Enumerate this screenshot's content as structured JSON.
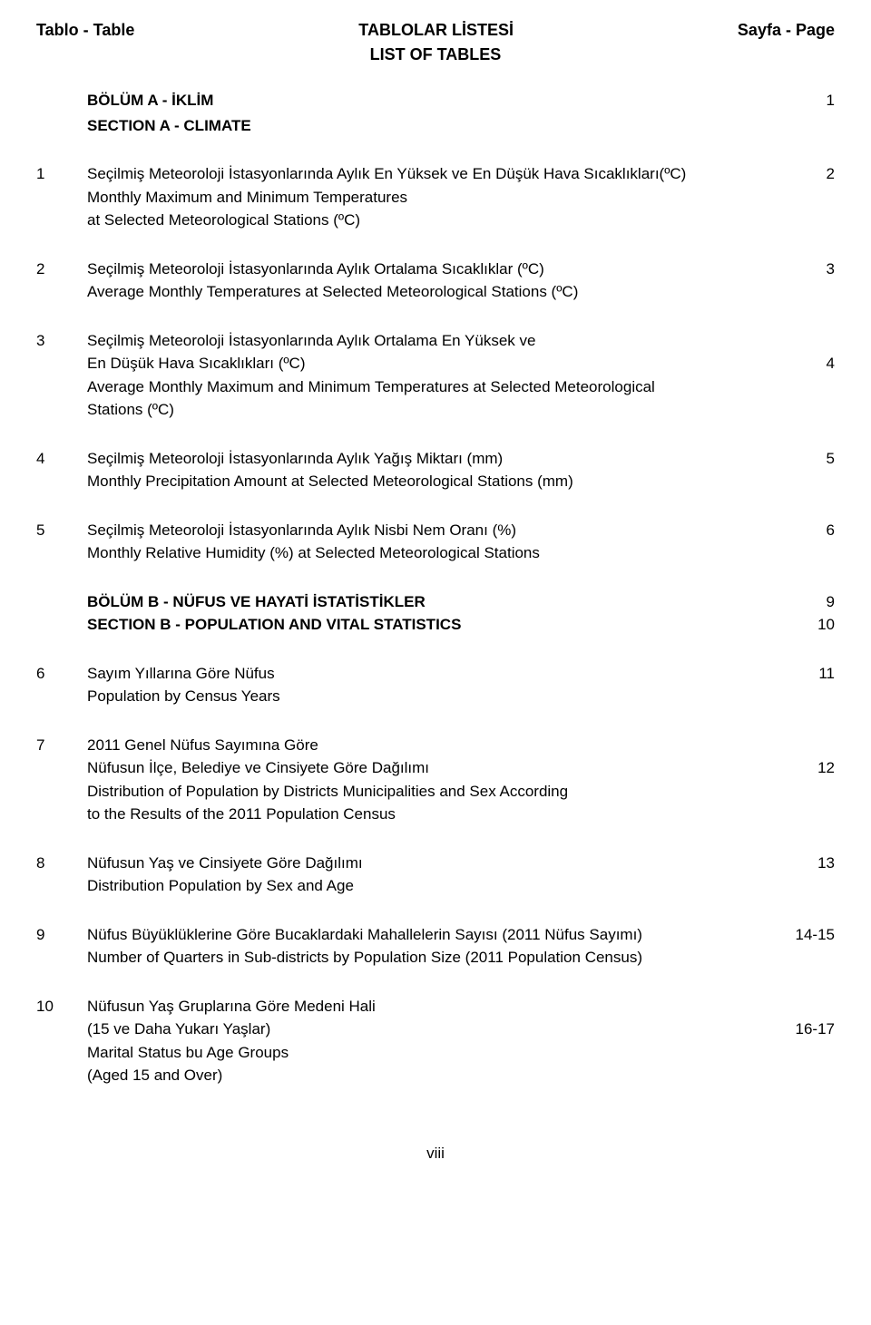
{
  "header": {
    "left": "Tablo - Table",
    "center1": "TABLOLAR LİSTESİ",
    "center2": "LIST OF TABLES",
    "right": "Sayfa - Page"
  },
  "sectionA": {
    "title_tr": "BÖLÜM  A  -  İKLİM",
    "title_en": "SECTION A - CLIMATE",
    "page": "1"
  },
  "entries": [
    {
      "idx": "1",
      "lines": [
        {
          "text": "Seçilmiş Meteoroloji İstasyonlarında Aylık En Yüksek ve En Düşük Hava Sıcaklıkları(ºC)",
          "num": "2"
        },
        {
          "text": "Monthly Maximum and Minimum  Temperatures",
          "num": ""
        },
        {
          "text": "at Selected Meteorological Stations (ºC)",
          "num": ""
        }
      ]
    },
    {
      "idx": "2",
      "lines": [
        {
          "text": "Seçilmiş Meteoroloji İstasyonlarında Aylık Ortalama Sıcaklıklar (ºC)",
          "num": "3"
        },
        {
          "text": "Average Monthly Temperatures at Selected Meteorological Stations (ºC)",
          "num": ""
        }
      ]
    },
    {
      "idx": "3",
      "lines": [
        {
          "text": "Seçilmiş Meteoroloji İstasyonlarında Aylık Ortalama En Yüksek ve",
          "num": ""
        },
        {
          "text": "En Düşük Hava Sıcaklıkları (ºC)",
          "num": "4"
        },
        {
          "text": "Average Monthly Maximum and Minimum Temperatures at Selected Meteorological",
          "num": ""
        },
        {
          "text": "Stations (ºC)",
          "num": ""
        }
      ]
    },
    {
      "idx": "4",
      "lines": [
        {
          "text": "Seçilmiş Meteoroloji İstasyonlarında Aylık Yağış Miktarı (mm)",
          "num": "5"
        },
        {
          "text": "Monthly Precipitation Amount at Selected Meteorological Stations (mm)",
          "num": ""
        }
      ]
    },
    {
      "idx": "5",
      "lines": [
        {
          "text": "Seçilmiş Meteoroloji İstasyonlarında Aylık Nisbi Nem Oranı (%)",
          "num": "6"
        },
        {
          "text": "Monthly Relative Humidity (%) at Selected Meteorological Stations",
          "num": ""
        }
      ]
    }
  ],
  "sectionB": {
    "title_tr": "BÖLÜM B - NÜFUS VE HAYATİ İSTATİSTİKLER",
    "page_tr": "9",
    "title_en": "SECTION B - POPULATION AND VITAL STATISTICS",
    "page_en": "10"
  },
  "entriesB": [
    {
      "idx": "6",
      "lines": [
        {
          "text": "Sayım Yıllarına Göre Nüfus",
          "num": "11"
        },
        {
          "text": "Population by Census Years",
          "num": ""
        }
      ]
    },
    {
      "idx": "7",
      "lines": [
        {
          "text": "2011 Genel Nüfus Sayımına Göre",
          "num": ""
        },
        {
          "text": "Nüfusun İlçe, Belediye ve Cinsiyete Göre Dağılımı",
          "num": "12"
        },
        {
          "text": "Distribution of Population by Districts Municipalities and Sex According",
          "num": ""
        },
        {
          "text": "to the Results of the 2011 Population Census",
          "num": ""
        }
      ]
    },
    {
      "idx": "8",
      "lines": [
        {
          "text": "Nüfusun Yaş ve Cinsiyete Göre Dağılımı",
          "num": "13"
        },
        {
          "text": "Distribution Population by Sex and Age",
          "num": ""
        }
      ]
    },
    {
      "idx": "9",
      "lines": [
        {
          "text": "Nüfus Büyüklüklerine Göre Bucaklardaki Mahallelerin Sayısı (2011 Nüfus Sayımı)",
          "num": "14-15"
        },
        {
          "text": "Number of Quarters in Sub-districts by Population Size (2011 Population Census)",
          "num": ""
        }
      ]
    },
    {
      "idx": "10",
      "lines": [
        {
          "text": "Nüfusun Yaş Gruplarına Göre Medeni Hali",
          "num": ""
        },
        {
          "text": "(15 ve Daha Yukarı Yaşlar)",
          "num": "16-17"
        },
        {
          "text": "Marital Status bu Age Groups",
          "num": ""
        },
        {
          "text": "(Aged 15 and Over)",
          "num": ""
        }
      ]
    }
  ],
  "footer": "viii"
}
